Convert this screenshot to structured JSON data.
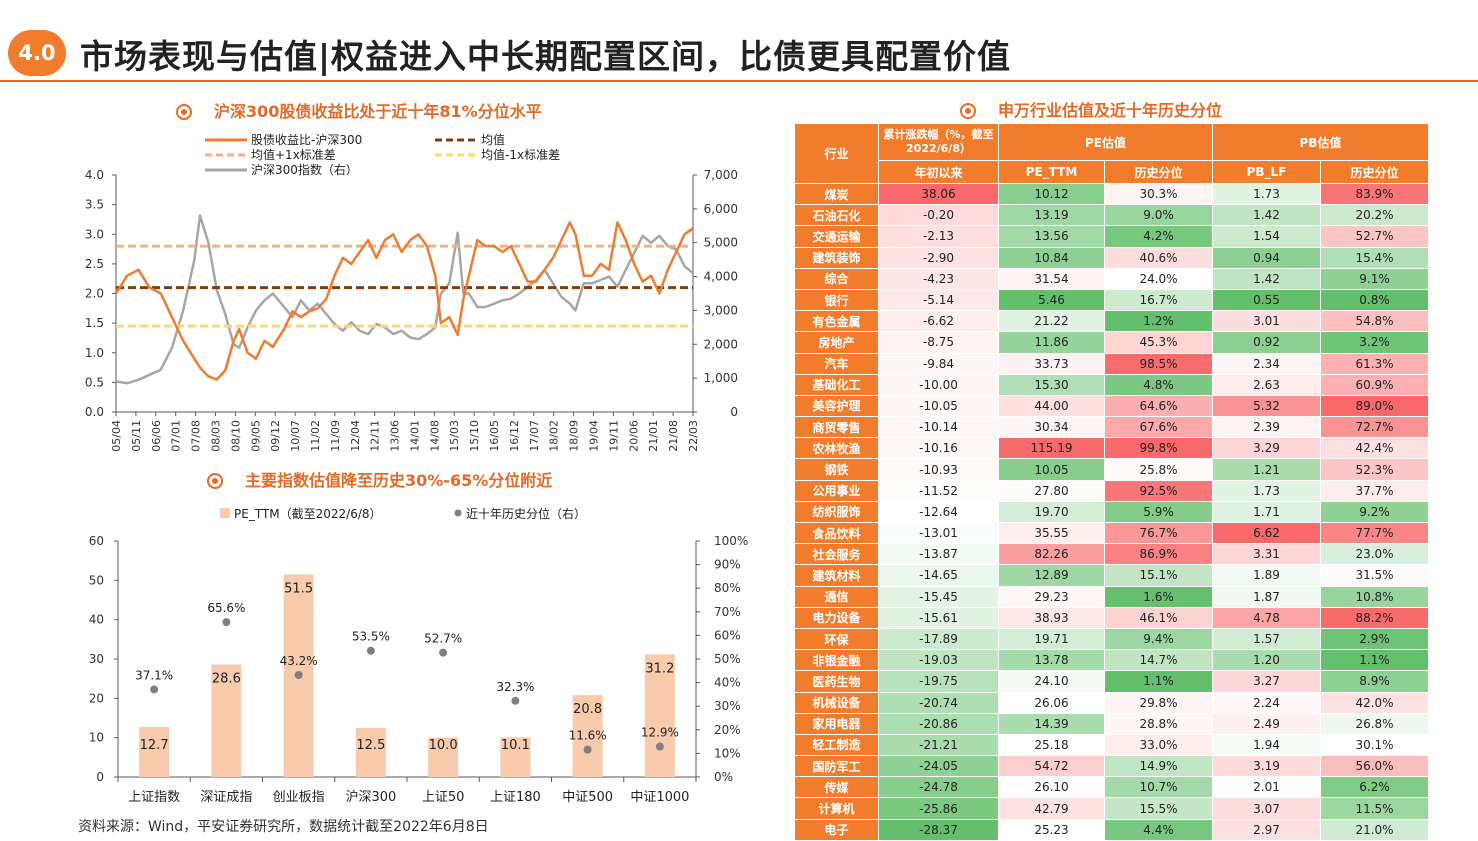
{
  "header": {
    "badge": "4.0",
    "title": "市场表现与估值|权益进入中长期配置区间，比债更具配置价值"
  },
  "chart1": {
    "subtitle": "沪深300股债收益比处于近十年81%分位水平",
    "legend": [
      {
        "label": "股债收益比-沪深300",
        "color": "#ed7d31",
        "style": "solid"
      },
      {
        "label": "均值",
        "color": "#843c0c",
        "style": "dash"
      },
      {
        "label": "均值+1x标准差",
        "color": "#f4b183",
        "style": "dash"
      },
      {
        "label": "均值-1x标准差",
        "color": "#ffd966",
        "style": "dash"
      },
      {
        "label": "沪深300指数（右）",
        "color": "#a6a6a6",
        "style": "solid"
      }
    ],
    "left_ticks": [
      "0.0",
      "0.5",
      "1.0",
      "1.5",
      "2.0",
      "2.5",
      "3.0",
      "3.5",
      "4.0"
    ],
    "right_ticks": [
      "0",
      "1,000",
      "2,000",
      "3,000",
      "4,000",
      "5,000",
      "6,000",
      "7,000"
    ],
    "x_ticks": [
      "05/04",
      "05/11",
      "06/06",
      "07/01",
      "07/08",
      "08/03",
      "08/10",
      "09/05",
      "09/12",
      "10/07",
      "11/02",
      "11/09",
      "12/04",
      "12/11",
      "13/06",
      "14/01",
      "14/08",
      "15/03",
      "15/10",
      "16/05",
      "16/12",
      "17/07",
      "18/02",
      "18/09",
      "19/04",
      "19/11",
      "20/06",
      "21/01",
      "21/08",
      "22/03"
    ]
  },
  "chart_data": [
    {
      "type": "line",
      "title": "沪深300股债收益比处于近十年81%分位水平",
      "x_range": [
        "2005-04",
        "2022-06"
      ],
      "ylim_left": [
        0,
        4
      ],
      "ylim_right": [
        0,
        7000
      ],
      "series": [
        {
          "name": "股债收益比-沪深300",
          "axis": "left",
          "x": [
            "2005-04",
            "2005-08",
            "2005-12",
            "2006-04",
            "2006-08",
            "2006-12",
            "2007-04",
            "2007-08",
            "2007-10",
            "2008-01",
            "2008-04",
            "2008-07",
            "2008-10",
            "2008-12",
            "2009-03",
            "2009-06",
            "2009-09",
            "2009-12",
            "2010-04",
            "2010-07",
            "2010-10",
            "2011-01",
            "2011-04",
            "2011-07",
            "2011-10",
            "2012-01",
            "2012-04",
            "2012-07",
            "2012-10",
            "2013-01",
            "2013-04",
            "2013-07",
            "2013-10",
            "2014-01",
            "2014-04",
            "2014-07",
            "2014-10",
            "2014-12",
            "2015-03",
            "2015-06",
            "2015-08",
            "2015-10",
            "2016-01",
            "2016-04",
            "2016-07",
            "2016-10",
            "2017-01",
            "2017-04",
            "2017-07",
            "2017-10",
            "2018-01",
            "2018-04",
            "2018-07",
            "2018-10",
            "2018-12",
            "2019-03",
            "2019-06",
            "2019-09",
            "2019-12",
            "2020-03",
            "2020-06",
            "2020-09",
            "2020-12",
            "2021-03",
            "2021-06",
            "2021-09",
            "2021-12",
            "2022-03",
            "2022-06"
          ],
          "values": [
            2.0,
            2.3,
            2.4,
            2.1,
            2.0,
            1.6,
            1.2,
            0.9,
            0.75,
            0.6,
            0.55,
            0.7,
            1.2,
            1.4,
            1.0,
            0.9,
            1.2,
            1.1,
            1.4,
            1.7,
            1.6,
            1.7,
            1.75,
            1.9,
            2.3,
            2.6,
            2.5,
            2.7,
            2.9,
            2.6,
            2.9,
            3.0,
            2.7,
            2.9,
            3.0,
            2.8,
            2.3,
            1.5,
            1.6,
            1.3,
            1.9,
            2.3,
            2.9,
            2.8,
            2.8,
            2.7,
            2.8,
            2.5,
            2.2,
            2.2,
            2.4,
            2.6,
            2.9,
            3.2,
            3.0,
            2.3,
            2.3,
            2.5,
            2.4,
            3.2,
            2.9,
            2.5,
            2.2,
            2.3,
            2.0,
            2.4,
            2.7,
            3.0,
            3.1
          ]
        },
        {
          "name": "均值",
          "axis": "left",
          "x": [
            "2005-04",
            "2022-06"
          ],
          "values": [
            2.1,
            2.1
          ]
        },
        {
          "name": "均值+1x标准差",
          "axis": "left",
          "x": [
            "2005-04",
            "2022-06"
          ],
          "values": [
            2.8,
            2.8
          ]
        },
        {
          "name": "均值-1x标准差",
          "axis": "left",
          "x": [
            "2005-04",
            "2022-06"
          ],
          "values": [
            1.45,
            1.45
          ]
        },
        {
          "name": "沪深300指数（右）",
          "axis": "right",
          "x": [
            "2005-04",
            "2005-08",
            "2005-12",
            "2006-04",
            "2006-08",
            "2006-12",
            "2007-04",
            "2007-08",
            "2007-10",
            "2008-01",
            "2008-04",
            "2008-07",
            "2008-10",
            "2008-12",
            "2009-03",
            "2009-06",
            "2009-09",
            "2009-12",
            "2010-04",
            "2010-07",
            "2010-10",
            "2011-01",
            "2011-04",
            "2011-07",
            "2011-10",
            "2012-01",
            "2012-04",
            "2012-07",
            "2012-10",
            "2013-01",
            "2013-04",
            "2013-07",
            "2013-10",
            "2014-01",
            "2014-04",
            "2014-07",
            "2014-10",
            "2014-12",
            "2015-03",
            "2015-06",
            "2015-08",
            "2015-10",
            "2016-01",
            "2016-04",
            "2016-07",
            "2016-10",
            "2017-01",
            "2017-04",
            "2017-07",
            "2017-10",
            "2018-01",
            "2018-04",
            "2018-07",
            "2018-10",
            "2018-12",
            "2019-03",
            "2019-06",
            "2019-09",
            "2019-12",
            "2020-03",
            "2020-06",
            "2020-09",
            "2020-12",
            "2021-03",
            "2021-06",
            "2021-09",
            "2021-12",
            "2022-03",
            "2022-06"
          ],
          "values": [
            900,
            850,
            950,
            1100,
            1250,
            1900,
            3000,
            4500,
            5800,
            5000,
            3600,
            2900,
            2000,
            1900,
            2500,
            3000,
            3300,
            3500,
            3100,
            2800,
            3300,
            3000,
            3200,
            2900,
            2600,
            2400,
            2650,
            2400,
            2300,
            2600,
            2500,
            2300,
            2400,
            2200,
            2150,
            2300,
            2500,
            3500,
            3800,
            5300,
            3500,
            3500,
            3100,
            3100,
            3200,
            3300,
            3350,
            3500,
            3700,
            3900,
            4200,
            3800,
            3400,
            3200,
            3000,
            3800,
            3800,
            3900,
            4000,
            3700,
            4200,
            4700,
            5200,
            5000,
            5200,
            4900,
            4800,
            4300,
            4100
          ]
        }
      ]
    },
    {
      "type": "bar",
      "title": "主要指数估值降至历史30%-65%分位附近",
      "categories": [
        "上证指数",
        "深证成指",
        "创业板指",
        "沪深300",
        "上证50",
        "上证180",
        "中证500",
        "中证1000"
      ],
      "ylim_left": [
        0,
        60
      ],
      "ylim_right": [
        0,
        1
      ],
      "series": [
        {
          "name": "PE_TTM（截至2022/6/8）",
          "type": "bar",
          "axis": "left",
          "values": [
            12.7,
            28.6,
            51.5,
            12.5,
            10.0,
            10.1,
            20.8,
            31.2
          ]
        },
        {
          "name": "近十年历史分位（右）",
          "type": "scatter",
          "axis": "right",
          "values": [
            0.371,
            0.656,
            0.432,
            0.535,
            0.527,
            0.323,
            0.116,
            0.129
          ],
          "labels": [
            "37.1%",
            "65.6%",
            "43.2%",
            "53.5%",
            "52.7%",
            "32.3%",
            "11.6%",
            "12.9%"
          ]
        }
      ]
    },
    {
      "type": "table",
      "title": "申万行业估值及近十年历史分位",
      "header_group": [
        "行业",
        "累计涨跌幅（%，截至2022/6/8）",
        "PE估值",
        "PB估值"
      ],
      "columns": [
        "行业",
        "年初以来",
        "PE_TTM",
        "历史分位",
        "PB_LF",
        "历史分位"
      ],
      "rows": [
        [
          "煤炭",
          "38.06",
          "10.12",
          "30.3%",
          "1.73",
          "83.9%"
        ],
        [
          "石油石化",
          "-0.20",
          "13.19",
          "9.0%",
          "1.42",
          "20.2%"
        ],
        [
          "交通运输",
          "-2.13",
          "13.56",
          "4.2%",
          "1.54",
          "52.7%"
        ],
        [
          "建筑装饰",
          "-2.90",
          "10.84",
          "40.6%",
          "0.94",
          "15.4%"
        ],
        [
          "综合",
          "-4.23",
          "31.54",
          "24.0%",
          "1.42",
          "9.1%"
        ],
        [
          "银行",
          "-5.14",
          "5.46",
          "16.7%",
          "0.55",
          "0.8%"
        ],
        [
          "有色金属",
          "-6.62",
          "21.22",
          "1.2%",
          "3.01",
          "54.8%"
        ],
        [
          "房地产",
          "-8.75",
          "11.86",
          "45.3%",
          "0.92",
          "3.2%"
        ],
        [
          "汽车",
          "-9.84",
          "33.73",
          "98.5%",
          "2.34",
          "61.3%"
        ],
        [
          "基础化工",
          "-10.00",
          "15.30",
          "4.8%",
          "2.63",
          "60.9%"
        ],
        [
          "美容护理",
          "-10.05",
          "44.00",
          "64.6%",
          "5.32",
          "89.0%"
        ],
        [
          "商贸零售",
          "-10.14",
          "30.34",
          "67.6%",
          "2.39",
          "72.7%"
        ],
        [
          "农林牧渔",
          "-10.16",
          "115.19",
          "99.8%",
          "3.29",
          "42.4%"
        ],
        [
          "钢铁",
          "-10.93",
          "10.05",
          "25.8%",
          "1.21",
          "52.3%"
        ],
        [
          "公用事业",
          "-11.52",
          "27.80",
          "92.5%",
          "1.73",
          "37.7%"
        ],
        [
          "纺织服饰",
          "-12.64",
          "19.70",
          "5.9%",
          "1.71",
          "9.2%"
        ],
        [
          "食品饮料",
          "-13.01",
          "35.55",
          "76.7%",
          "6.62",
          "77.7%"
        ],
        [
          "社会服务",
          "-13.87",
          "82.26",
          "86.9%",
          "3.31",
          "23.0%"
        ],
        [
          "建筑材料",
          "-14.65",
          "12.89",
          "15.1%",
          "1.89",
          "31.5%"
        ],
        [
          "通信",
          "-15.45",
          "29.23",
          "1.6%",
          "1.87",
          "10.8%"
        ],
        [
          "电力设备",
          "-15.61",
          "38.93",
          "46.1%",
          "4.78",
          "88.2%"
        ],
        [
          "环保",
          "-17.89",
          "19.71",
          "9.4%",
          "1.57",
          "2.9%"
        ],
        [
          "非银金融",
          "-19.03",
          "13.78",
          "14.7%",
          "1.20",
          "1.1%"
        ],
        [
          "医药生物",
          "-19.75",
          "24.10",
          "1.1%",
          "3.27",
          "8.9%"
        ],
        [
          "机械设备",
          "-20.74",
          "26.06",
          "29.8%",
          "2.24",
          "42.0%"
        ],
        [
          "家用电器",
          "-20.86",
          "14.39",
          "28.8%",
          "2.49",
          "26.8%"
        ],
        [
          "轻工制造",
          "-21.21",
          "25.18",
          "33.0%",
          "1.94",
          "30.1%"
        ],
        [
          "国防军工",
          "-24.05",
          "54.72",
          "14.9%",
          "3.19",
          "56.0%"
        ],
        [
          "传媒",
          "-24.78",
          "26.10",
          "10.7%",
          "2.01",
          "6.2%"
        ],
        [
          "计算机",
          "-25.86",
          "42.79",
          "15.5%",
          "3.07",
          "11.5%"
        ],
        [
          "电子",
          "-28.37",
          "25.23",
          "4.4%",
          "2.97",
          "21.0%"
        ]
      ]
    }
  ],
  "chart2": {
    "subtitle": "主要指数估值降至历史30%-65%分位附近",
    "legend_bar": "PE_TTM（截至2022/6/8）",
    "legend_dot": "近十年历史分位（右）",
    "left_ticks": [
      "0",
      "10",
      "20",
      "30",
      "40",
      "50",
      "60"
    ],
    "right_ticks": [
      "0%",
      "10%",
      "20%",
      "30%",
      "40%",
      "50%",
      "60%",
      "70%",
      "80%",
      "90%",
      "100%"
    ],
    "bar_color": "#f8cbad",
    "dot_color": "#7f7f7f"
  },
  "table": {
    "subtitle": "申万行业估值及近十年历史分位",
    "h_industry": "行业",
    "h_change": "累计涨跌幅（%，截至2022/6/8）",
    "h_pe": "PE估值",
    "h_pb": "PB估值",
    "h_ytd": "年初以来",
    "h_pettm": "PE_TTM",
    "h_pct1": "历史分位",
    "h_pblf": "PB_LF",
    "h_pct2": "历史分位",
    "header_color": "#f07c2c"
  },
  "source": "资料来源：Wind，平安证券研究所，数据统计截至2022年6月8日"
}
